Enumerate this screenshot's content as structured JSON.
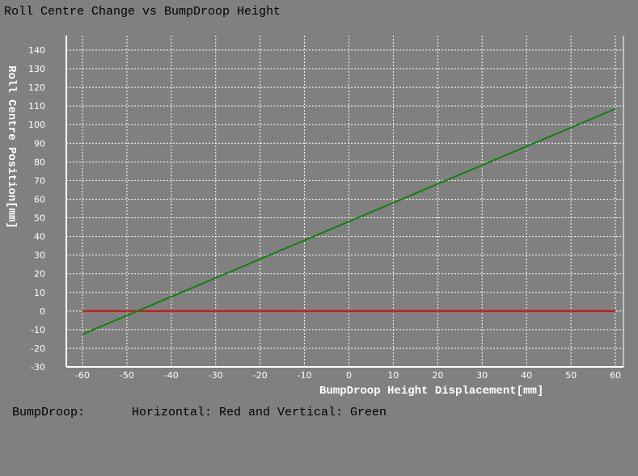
{
  "title": "Roll Centre Change vs BumpDroop Height",
  "legend": {
    "label": "BumpDroop:",
    "description": "Horizontal: Red and Vertical: Green"
  },
  "colors": {
    "background": "#808080",
    "axis": "#ffffff",
    "grid": "#ffffff",
    "horizontal": "#d01010",
    "vertical": "#108010"
  },
  "chart_data": {
    "type": "line",
    "title": "Roll Centre Change vs BumpDroop Height",
    "xlabel": "BumpDroop Height Displacement[mm]",
    "ylabel": "Roll Centre Position[mm]",
    "xlim": [
      -60,
      60
    ],
    "ylim": [
      -30,
      140
    ],
    "xticks": [
      -60,
      -50,
      -40,
      -30,
      -20,
      -10,
      0,
      10,
      20,
      30,
      40,
      50,
      60
    ],
    "yticks": [
      -30,
      -20,
      -10,
      0,
      10,
      20,
      30,
      40,
      50,
      60,
      70,
      80,
      90,
      100,
      110,
      120,
      130,
      140
    ],
    "grid": true,
    "series": [
      {
        "name": "Horizontal",
        "color": "#d01010",
        "x": [
          -60,
          60
        ],
        "y": [
          0,
          0
        ]
      },
      {
        "name": "Vertical",
        "color": "#108010",
        "x": [
          -60,
          60
        ],
        "y": [
          -12.5,
          108.5
        ]
      }
    ]
  }
}
